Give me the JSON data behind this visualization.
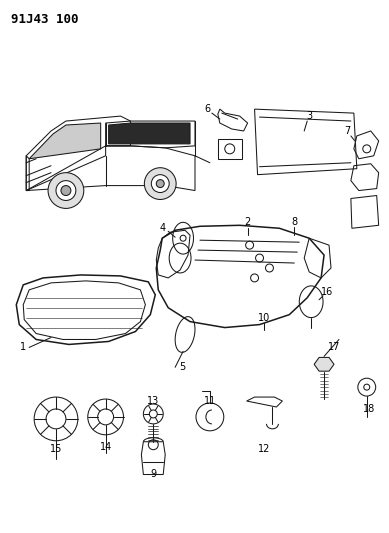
{
  "title": "91J43 100",
  "bg_color": "#ffffff",
  "fig_width": 3.89,
  "fig_height": 5.33,
  "dpi": 100,
  "line_color": "#1a1a1a",
  "lw": 0.75
}
